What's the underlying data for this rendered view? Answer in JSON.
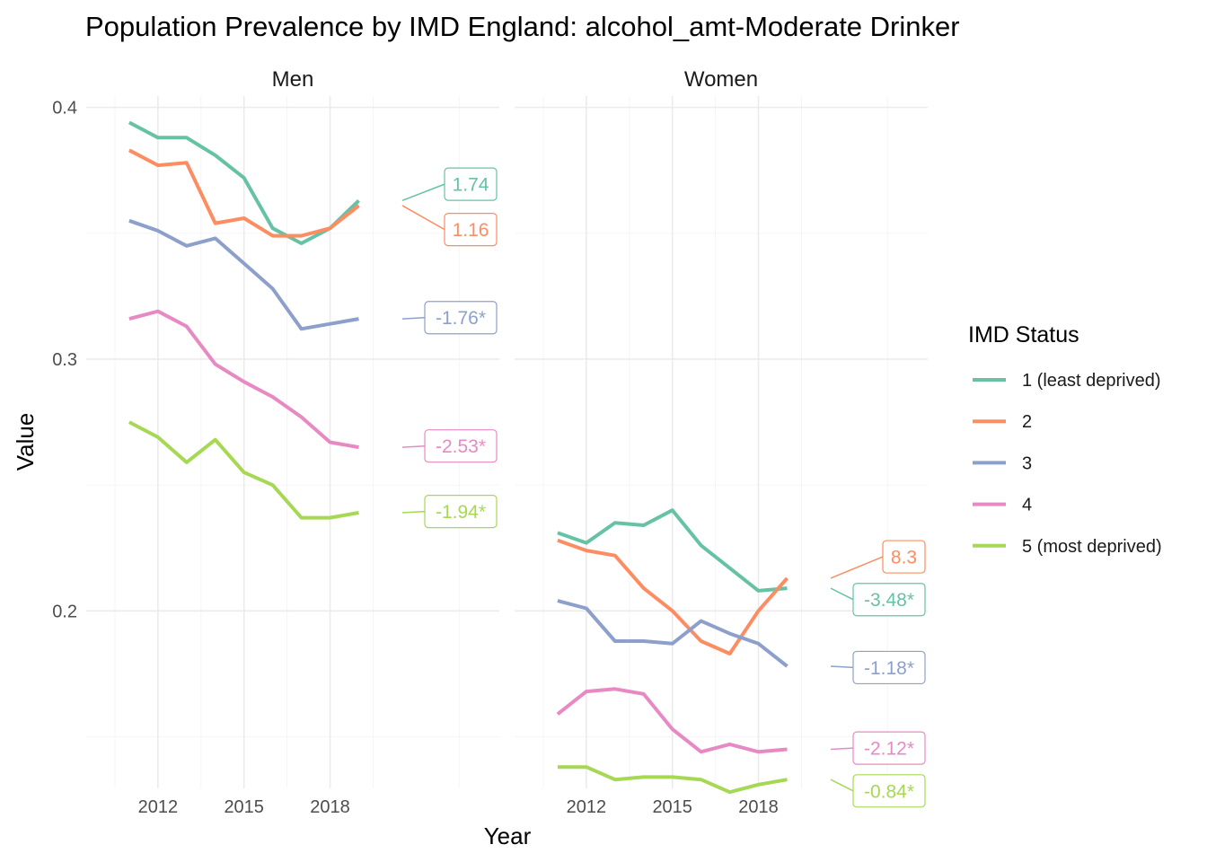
{
  "title": "Population Prevalence by IMD England: alcohol_amt-Moderate Drinker",
  "legend": {
    "title": "IMD Status",
    "placement": "right",
    "entries": [
      {
        "label": "1 (least deprived)",
        "color": "#66c2a5"
      },
      {
        "label": "2",
        "color": "#fc8d62"
      },
      {
        "label": "3",
        "color": "#8da0cb"
      },
      {
        "label": "4",
        "color": "#e78ac3"
      },
      {
        "label": "5 (most deprived)",
        "color": "#a6d854"
      }
    ]
  },
  "chart_data": {
    "type": "line",
    "xlabel": "Year",
    "ylabel": "Value",
    "x": [
      2011,
      2012,
      2013,
      2014,
      2015,
      2016,
      2017,
      2018,
      2019
    ],
    "xlim": [
      2009.5,
      2023.9
    ],
    "ylim": [
      0.1295,
      0.4045
    ],
    "x_ticks": [
      2012,
      2015,
      2018
    ],
    "y_ticks": [
      0.2,
      0.3,
      0.4
    ],
    "y_tick_labels": [
      "0.2",
      "0.3",
      "0.4"
    ],
    "grid": true,
    "panels": [
      {
        "name": "Men",
        "series": [
          {
            "name": "1 (least deprived)",
            "values": [
              0.394,
              0.388,
              0.388,
              0.381,
              0.372,
              0.352,
              0.346,
              0.352,
              0.363
            ],
            "label": "1.74",
            "label_y": 0.3695
          },
          {
            "name": "2",
            "values": [
              0.383,
              0.377,
              0.378,
              0.354,
              0.356,
              0.349,
              0.349,
              0.352,
              0.361
            ],
            "label": "1.16",
            "label_y": 0.3515
          },
          {
            "name": "3",
            "values": [
              0.355,
              0.351,
              0.345,
              0.348,
              0.338,
              0.328,
              0.312,
              0.314,
              0.316
            ],
            "label": "-1.76*",
            "label_y": 0.3165
          },
          {
            "name": "4",
            "values": [
              0.316,
              0.319,
              0.313,
              0.298,
              0.291,
              0.285,
              0.277,
              0.267,
              0.265
            ],
            "label": "-2.53*",
            "label_y": 0.2655
          },
          {
            "name": "5 (most deprived)",
            "values": [
              0.275,
              0.269,
              0.259,
              0.268,
              0.255,
              0.25,
              0.237,
              0.237,
              0.239
            ],
            "label": "-1.94*",
            "label_y": 0.2395
          }
        ]
      },
      {
        "name": "Women",
        "series": [
          {
            "name": "1 (least deprived)",
            "values": [
              0.231,
              0.227,
              0.235,
              0.234,
              0.24,
              0.226,
              0.217,
              0.208,
              0.209
            ],
            "label": "-3.48*",
            "label_y": 0.2045
          },
          {
            "name": "2",
            "values": [
              0.228,
              0.224,
              0.222,
              0.209,
              0.2,
              0.188,
              0.183,
              0.2,
              0.213
            ],
            "label": "8.3",
            "label_y": 0.2215
          },
          {
            "name": "3",
            "values": [
              0.204,
              0.201,
              0.188,
              0.188,
              0.187,
              0.196,
              0.191,
              0.187,
              0.178
            ],
            "label": "-1.18*",
            "label_y": 0.1775
          },
          {
            "name": "4",
            "values": [
              0.159,
              0.168,
              0.169,
              0.167,
              0.153,
              0.144,
              0.147,
              0.144,
              0.145
            ],
            "label": "-2.12*",
            "label_y": 0.1455
          },
          {
            "name": "5 (most deprived)",
            "values": [
              0.138,
              0.138,
              0.133,
              0.134,
              0.134,
              0.133,
              0.128,
              0.131,
              0.133
            ],
            "label": "-0.84*",
            "label_y": 0.1285
          }
        ]
      }
    ]
  }
}
